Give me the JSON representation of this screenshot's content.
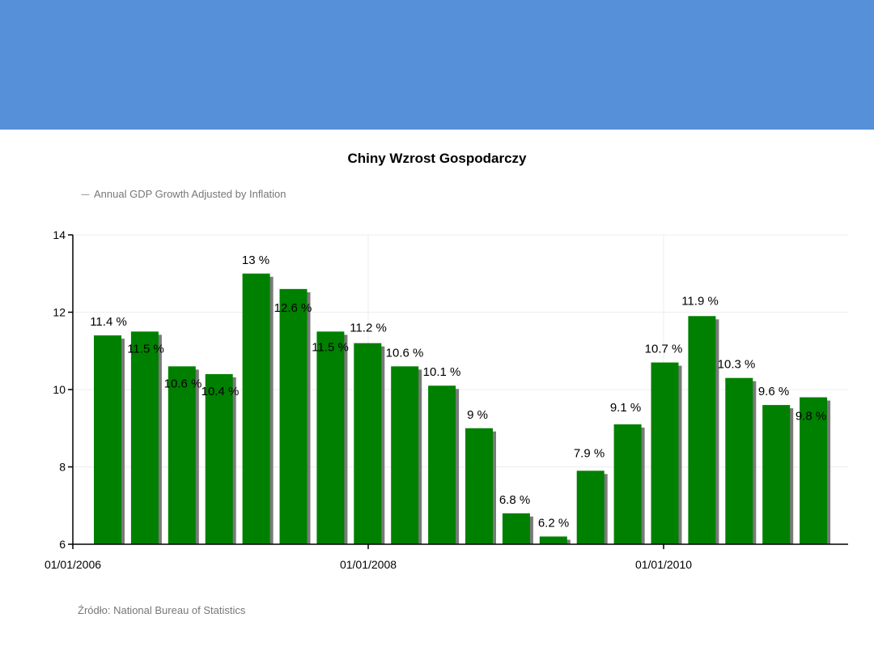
{
  "colors": {
    "header": "#5590d8",
    "bar": "#008000",
    "bar_shadow": "#7a7a7a",
    "grid": "#eeeeee",
    "axis": "#000000"
  },
  "chart_data": {
    "type": "bar",
    "title": "Chiny Wzrost Gospodarczy",
    "legend": "Annual GDP Growth Adjusted by Inflation",
    "legend_position": "top-left",
    "source": "Źródło: National Bureau of Statistics",
    "series": [
      {
        "name": "Annual GDP Growth Adjusted by Inflation",
        "values": [
          11.4,
          11.5,
          10.6,
          10.4,
          13,
          12.6,
          11.5,
          11.2,
          10.6,
          10.1,
          9,
          6.8,
          6.2,
          7.9,
          9.1,
          10.7,
          11.9,
          10.3,
          9.6,
          9.8
        ],
        "labels": [
          "11.4 %",
          "11.5 %",
          "10.6 %",
          "10.4 %",
          "13 %",
          "12.6 %",
          "11.5 %",
          "11.2 %",
          "10.6 %",
          "10.1 %",
          "9 %",
          "6.8 %",
          "6.2 %",
          "7.9 %",
          "9.1 %",
          "10.7 %",
          "11.9 %",
          "10.3 %",
          "9.6 %",
          "9.8 %"
        ]
      }
    ],
    "ylim": [
      6,
      14
    ],
    "yticks": [
      6,
      8,
      10,
      12,
      14
    ],
    "xticks": [
      "01/01/2006",
      "01/01/2008",
      "01/01/2010"
    ],
    "xlabel": "",
    "ylabel": "",
    "grid": true
  }
}
